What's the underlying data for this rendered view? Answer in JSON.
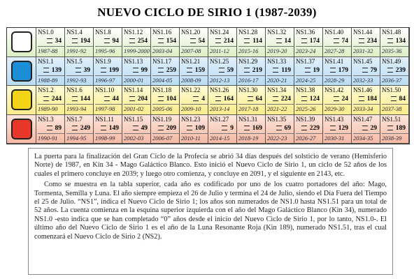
{
  "header": {
    "title": "NUEVO CICLO DE SIRIO 1 (1987-2039)"
  },
  "table": {
    "rows": [
      [
        [
          "NS1.0",
          34,
          "1987-88"
        ],
        [
          "NS1.4",
          194,
          "1991-92"
        ],
        [
          "NS1.8",
          94,
          "1995-96"
        ],
        [
          "NS1.12",
          254,
          "1999-2000"
        ],
        [
          "NS1.16",
          154,
          "2003-04"
        ],
        [
          "NS1.20",
          54,
          "2007-08"
        ],
        [
          "NS1.24",
          214,
          "2011-12"
        ],
        [
          "NS1.28",
          114,
          "2015-16"
        ],
        [
          "NS1.32",
          14,
          "2019-20"
        ],
        [
          "NS1.36",
          174,
          "2023-24"
        ],
        [
          "NS1.40",
          74,
          "2027-28"
        ],
        [
          "NS1.44",
          234,
          "2031-32"
        ],
        [
          "NS1.48",
          134,
          "2035-36"
        ]
      ],
      [
        [
          "NS1.1",
          139,
          "1988-89"
        ],
        [
          "NS1.5",
          39,
          "1992-93"
        ],
        [
          "NS1.9",
          199,
          "1996-97"
        ],
        [
          "NS1.13",
          99,
          "2000-01"
        ],
        [
          "NS1.17",
          259,
          "2004-05"
        ],
        [
          "NS1.21",
          159,
          "2008-09"
        ],
        [
          "NS1.25",
          59,
          "2012-13"
        ],
        [
          "NS1.29",
          219,
          "2016-17"
        ],
        [
          "NS1.33",
          119,
          "2020-21"
        ],
        [
          "NS1.37",
          19,
          "2024-25"
        ],
        [
          "NS1.41",
          179,
          "2028-29"
        ],
        [
          "NS1.45",
          79,
          "2032-33"
        ],
        [
          "NS1.49",
          239,
          "2036-37"
        ]
      ],
      [
        [
          "NS1.2",
          244,
          "1989-90"
        ],
        [
          "NS1.6",
          144,
          "1993-94"
        ],
        [
          "NS1.10",
          44,
          "1997-98"
        ],
        [
          "NS1.14",
          204,
          "2001-02"
        ],
        [
          "NS1.18",
          104,
          "2005-06"
        ],
        [
          "NS1.22",
          4,
          "2009-10"
        ],
        [
          "NS1.26",
          164,
          "2013-14"
        ],
        [
          "NS1.30",
          64,
          "2017-18"
        ],
        [
          "NS1.34",
          224,
          "2021-22"
        ],
        [
          "NS1.38",
          124,
          "2025-26"
        ],
        [
          "NS1.42",
          24,
          "2029-30"
        ],
        [
          "NS1.46",
          184,
          "2033-34"
        ],
        [
          "NS1.50",
          84,
          "2037-38"
        ]
      ],
      [
        [
          "NS1.3",
          89,
          "1990-91"
        ],
        [
          "NS1.7",
          249,
          "1994-95"
        ],
        [
          "NS1.11",
          149,
          "1998-99"
        ],
        [
          "NS1.15",
          49,
          "2002-03"
        ],
        [
          "NS1.19",
          209,
          "2006-07"
        ],
        [
          "NS1.23",
          109,
          "2010-11"
        ],
        [
          "NS1.27",
          9,
          "2014-15"
        ],
        [
          "NS1.31",
          169,
          "2018-19"
        ],
        [
          "NS1.35",
          69,
          "2022-23"
        ],
        [
          "NS1.39",
          229,
          "2026-27"
        ],
        [
          "NS1.43",
          129,
          "2030-31"
        ],
        [
          "NS1.47",
          29,
          "2034-35"
        ],
        [
          "NS1.51",
          189,
          "2038-39"
        ]
      ]
    ]
  },
  "body": {
    "paragraphs": [
      "La puerta para la finalización del Gran Ciclo de la Profecía se abrió 34 días después del solsticio de verano (Hemisferio Norte) de 1987, en Kin 34 - Mago Galáctico Blanco. Esto inició el Nuevo Ciclo de Sirio 1, un ciclo de 52 años de los cuales el primero concluye en 2039; y luego otro comienza, y concluye en 2091, y el siguiente en 2143, etc.",
      "Como se muestra en la tabla superior, cada año es codificado por uno de los cuatro portadores del año: Mago, Tormenta, Semilla y Luna. El año siempre empieza el 26 de Julio y termina el 24 de Julio, siendo el Día Fuera del Tiempo el 25 de Julio. “NS1”, indica el Nuevo Ciclo de Sirio 1; los años son numerados de NS1.0 hasta NS1.51 para un total de 52 años. La cuenta comienza en la esquina superior izquierda con el año del Mago Galáctico Blanco (Kin 34), numerado NS1.0 -esto indica que se han completado “0” años desde el inicio del Nuevo Ciclo de Sirio 1, por lo tanto, NS1.0-. El último año del Nuevo Ciclo de Sirio 1 es el año de la Luna Resonante Roja (Kin 189), numerado NS1.51, tras el cual comenzará el Nuevo Ciclo de Sirio 2 (NS2)."
    ]
  }
}
